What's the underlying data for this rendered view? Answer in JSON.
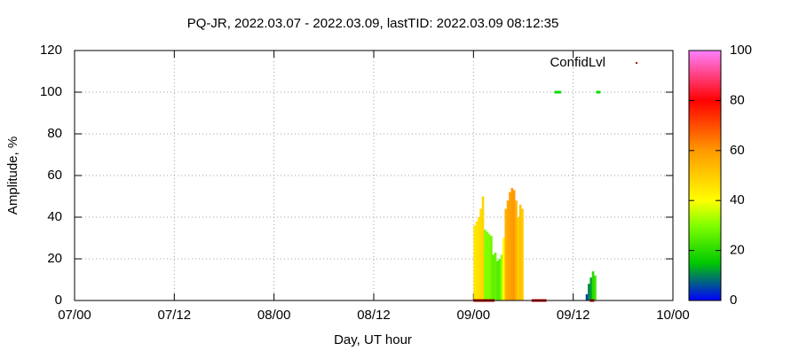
{
  "chart_data": {
    "type": "impulse",
    "title": "PQ-JR, 2022.03.07 - 2022.03.09, lastTID: 2022.03.09 08:12:35",
    "x_label": "Day, UT hour",
    "y_label": "Amplitude, %",
    "xlim": [
      0,
      72
    ],
    "xticks": [
      {
        "value": 0,
        "label": "07/00"
      },
      {
        "value": 12,
        "label": "07/12"
      },
      {
        "value": 24,
        "label": "08/00"
      },
      {
        "value": 36,
        "label": "08/12"
      },
      {
        "value": 48,
        "label": "09/00"
      },
      {
        "value": 60,
        "label": "09/12"
      },
      {
        "value": 72,
        "label": "10/00"
      }
    ],
    "ylim": [
      0,
      120
    ],
    "yticks": [
      0,
      20,
      40,
      60,
      80,
      100,
      120
    ],
    "grid": true,
    "cblim": [
      0,
      100
    ],
    "cbticks": [
      0,
      20,
      40,
      60,
      80,
      100
    ],
    "palette": [
      {
        "value": 0,
        "color": "#0000ff"
      },
      {
        "value": 15,
        "color": "#00c800"
      },
      {
        "value": 30,
        "color": "#80ff00"
      },
      {
        "value": 40,
        "color": "#ffff00"
      },
      {
        "value": 60,
        "color": "#ff9900"
      },
      {
        "value": 80,
        "color": "#ff0000"
      },
      {
        "value": 100,
        "color": "#ff80ff"
      }
    ],
    "amplitude": {
      "x": [
        48,
        48.25,
        48.5,
        48.75,
        49,
        49.25,
        49.5,
        49.75,
        50,
        50.25,
        50.5,
        50.75,
        51,
        51.25,
        51.5,
        51.75,
        52,
        52.25,
        52.5,
        52.75,
        53,
        53.25,
        53.5,
        53.75,
        61.5,
        61.75,
        62,
        62.25,
        62.5
      ],
      "values": [
        36,
        38,
        40,
        44,
        50,
        34,
        33,
        32,
        31,
        22,
        23,
        19,
        20,
        22,
        30,
        44,
        48,
        52,
        54,
        53,
        48,
        40,
        46,
        44,
        3,
        8,
        11,
        14,
        12
      ],
      "confid": [
        45,
        45,
        46,
        47,
        48,
        30,
        30,
        30,
        28,
        26,
        27,
        25,
        25,
        32,
        40,
        55,
        57,
        58,
        60,
        60,
        55,
        50,
        52,
        50,
        5,
        10,
        12,
        20,
        22
      ]
    },
    "series": [
      {
        "name": "ConfidLvl",
        "color": "#c00000",
        "x": [
          57.75,
          58,
          58.25,
          62.75,
          63,
          48,
          48.25,
          48.5,
          48.75,
          49,
          49.25,
          49.5,
          49.75,
          50,
          50.25,
          55,
          55.25,
          55.5,
          55.75,
          56,
          56.25,
          56.5,
          62,
          62.25
        ],
        "values": [
          100,
          100,
          100,
          100,
          100,
          0,
          0,
          0,
          0,
          0,
          0,
          0,
          0,
          0,
          0,
          0,
          0,
          0,
          0,
          0,
          0,
          0,
          0,
          0
        ],
        "colors": [
          "#00e000",
          "#00e000",
          "#00e000",
          "#00e000",
          "#00e000",
          "#c00000",
          "#c00000",
          "#c00000",
          "#c00000",
          "#c00000",
          "#c00000",
          "#c00000",
          "#c00000",
          "#c00000",
          "#c00000",
          "#c00000",
          "#c00000",
          "#c00000",
          "#c00000",
          "#c00000",
          "#c00000",
          "#c00000",
          "#c00000",
          "#c00000"
        ]
      }
    ]
  }
}
